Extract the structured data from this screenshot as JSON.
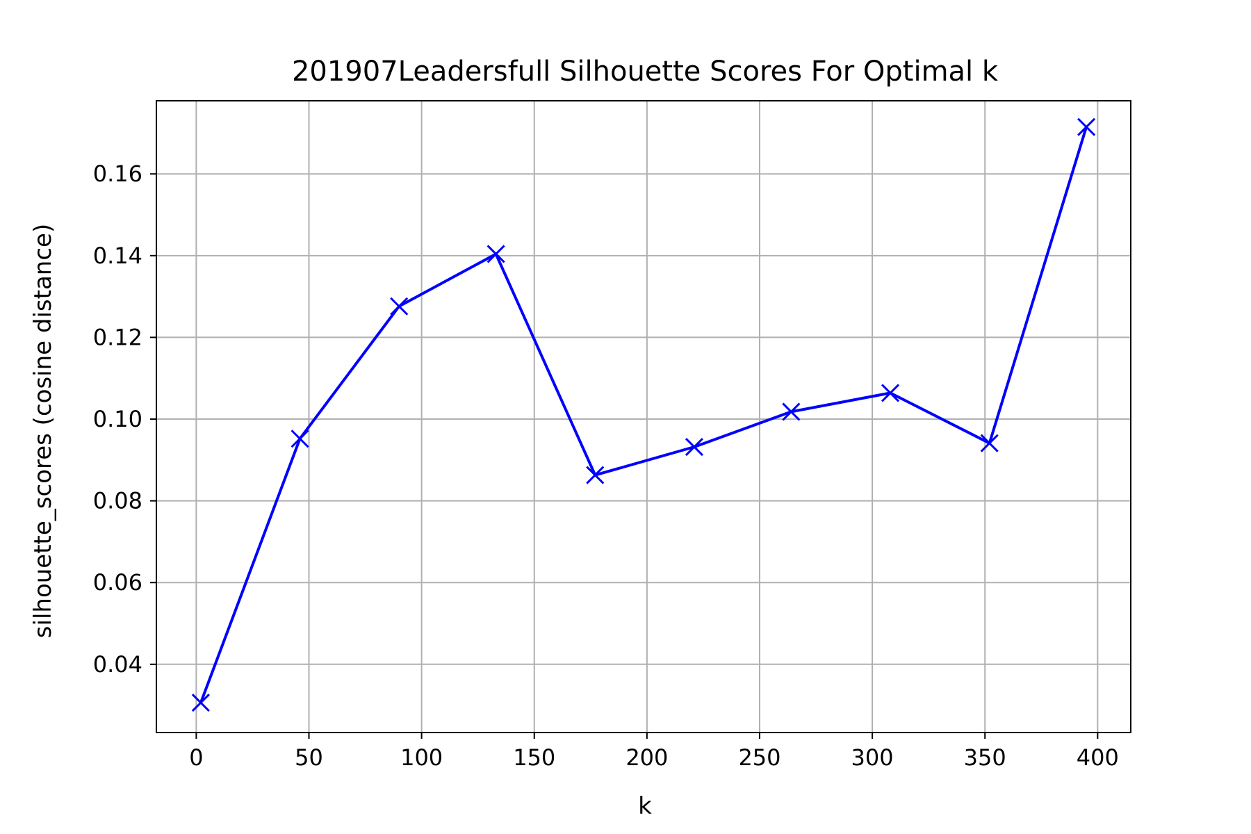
{
  "chart_data": {
    "type": "line",
    "title": "201907Leadersfull Silhouette Scores For Optimal k",
    "xlabel": "k",
    "ylabel": "silhouette_scores (cosine distance)",
    "xlim": [
      -17.7,
      414.7
    ],
    "ylim": [
      0.0233,
      0.1779
    ],
    "x_ticks": [
      0,
      50,
      100,
      150,
      200,
      250,
      300,
      350,
      400
    ],
    "y_ticks": [
      0.04,
      0.06,
      0.08,
      0.1,
      0.12,
      0.14,
      0.16
    ],
    "x_tick_labels": [
      "0",
      "50",
      "100",
      "150",
      "200",
      "250",
      "300",
      "350",
      "400"
    ],
    "y_tick_labels": [
      "0.04",
      "0.06",
      "0.08",
      "0.10",
      "0.12",
      "0.14",
      "0.16"
    ],
    "grid": true,
    "marker": "x",
    "color": "#0000ff",
    "series": [
      {
        "x": [
          2,
          46,
          90,
          133,
          177,
          221,
          264,
          308,
          352,
          395
        ],
        "values": [
          0.0306,
          0.0952,
          0.1276,
          0.1404,
          0.0863,
          0.0932,
          0.1018,
          0.1064,
          0.0941,
          0.1715
        ]
      }
    ]
  }
}
